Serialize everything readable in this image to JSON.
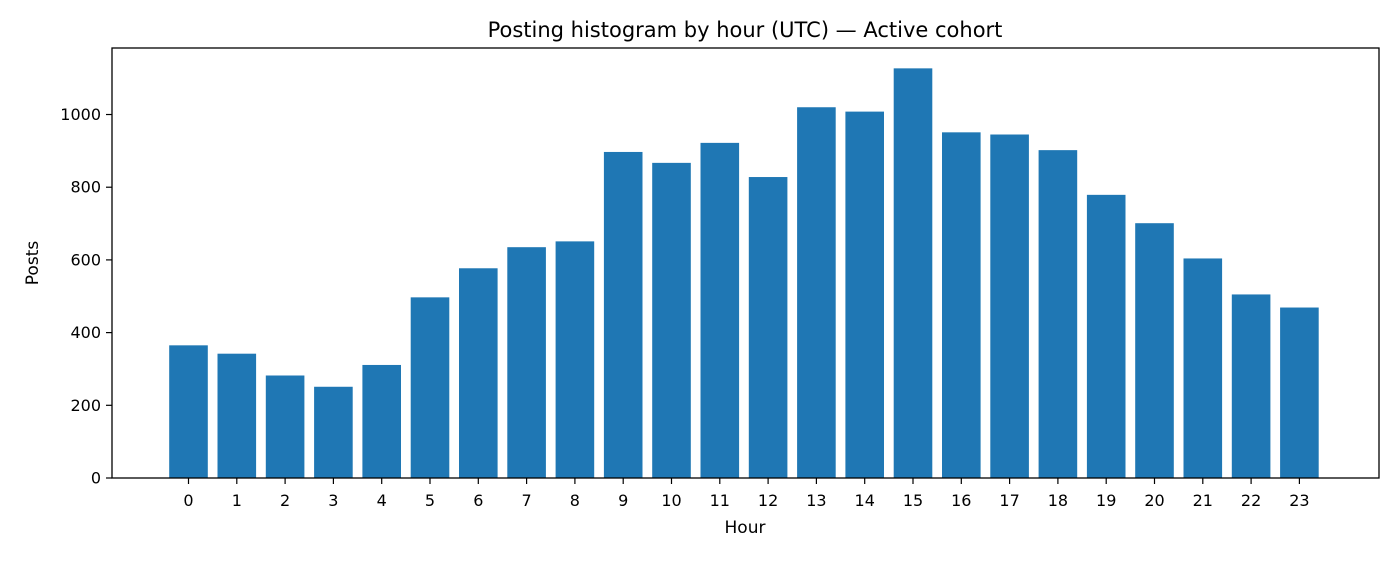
{
  "chart_data": {
    "type": "bar",
    "title": "Posting histogram by hour (UTC) — Active cohort",
    "xlabel": "Hour",
    "ylabel": "Posts",
    "categories": [
      "0",
      "1",
      "2",
      "3",
      "4",
      "5",
      "6",
      "7",
      "8",
      "9",
      "10",
      "11",
      "12",
      "13",
      "14",
      "15",
      "16",
      "17",
      "18",
      "19",
      "20",
      "21",
      "22",
      "23"
    ],
    "values": [
      365,
      342,
      282,
      251,
      311,
      497,
      577,
      635,
      651,
      897,
      867,
      922,
      828,
      1020,
      1008,
      1127,
      951,
      945,
      902,
      779,
      701,
      604,
      505,
      469
    ],
    "ylim": [
      0,
      1183
    ],
    "yticks": [
      0,
      200,
      400,
      600,
      800,
      1000
    ],
    "grid": false,
    "legend": "none",
    "bar_color": "#1f77b4"
  }
}
